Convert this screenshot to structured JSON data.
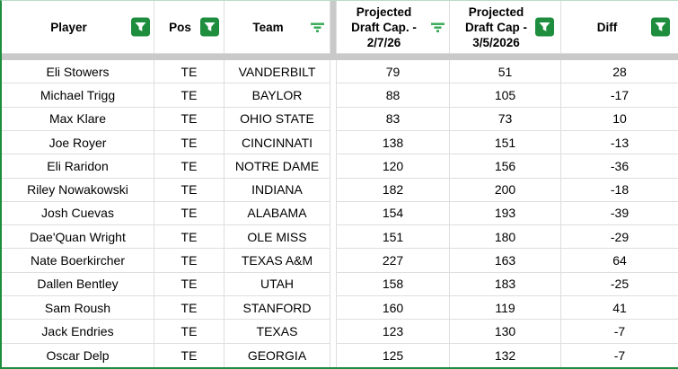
{
  "colors": {
    "accent_green_border": "#1e8e3e",
    "filter_badge_green": "#1e8e3e",
    "filter_lines_green": "#34a853",
    "gridline_gray": "#dedede",
    "frozen_divider_gray": "#c9c9c9",
    "cell_background": "#ffffff",
    "text": "#000000"
  },
  "icons": {
    "badge": "filter-applied-badge-icon",
    "lines": "filter-funnel-lines-icon"
  },
  "table": {
    "columns": [
      {
        "label": "Player",
        "filter_icon": "badge"
      },
      {
        "label": "Pos",
        "filter_icon": "badge"
      },
      {
        "label": "Team",
        "filter_icon": "lines"
      },
      {
        "label": "Projected Draft Cap. - 2/7/26",
        "filter_icon": "lines"
      },
      {
        "label": "Projected Draft Cap - 3/5/2026",
        "filter_icon": "badge"
      },
      {
        "label": "Diff",
        "filter_icon": "badge"
      }
    ],
    "rows": [
      {
        "player": "Eli Stowers",
        "pos": "TE",
        "team": "VANDERBILT",
        "cap_2_7_26": 79,
        "cap_3_5_2026": 51,
        "diff": 28
      },
      {
        "player": "Michael Trigg",
        "pos": "TE",
        "team": "BAYLOR",
        "cap_2_7_26": 88,
        "cap_3_5_2026": 105,
        "diff": -17
      },
      {
        "player": "Max Klare",
        "pos": "TE",
        "team": "OHIO STATE",
        "cap_2_7_26": 83,
        "cap_3_5_2026": 73,
        "diff": 10
      },
      {
        "player": "Joe Royer",
        "pos": "TE",
        "team": "CINCINNATI",
        "cap_2_7_26": 138,
        "cap_3_5_2026": 151,
        "diff": -13
      },
      {
        "player": "Eli Raridon",
        "pos": "TE",
        "team": "NOTRE DAME",
        "cap_2_7_26": 120,
        "cap_3_5_2026": 156,
        "diff": -36
      },
      {
        "player": "Riley Nowakowski",
        "pos": "TE",
        "team": "INDIANA",
        "cap_2_7_26": 182,
        "cap_3_5_2026": 200,
        "diff": -18
      },
      {
        "player": "Josh Cuevas",
        "pos": "TE",
        "team": "ALABAMA",
        "cap_2_7_26": 154,
        "cap_3_5_2026": 193,
        "diff": -39
      },
      {
        "player": "Dae'Quan Wright",
        "pos": "TE",
        "team": "OLE MISS",
        "cap_2_7_26": 151,
        "cap_3_5_2026": 180,
        "diff": -29
      },
      {
        "player": "Nate Boerkircher",
        "pos": "TE",
        "team": "TEXAS A&M",
        "cap_2_7_26": 227,
        "cap_3_5_2026": 163,
        "diff": 64
      },
      {
        "player": "Dallen Bentley",
        "pos": "TE",
        "team": "UTAH",
        "cap_2_7_26": 158,
        "cap_3_5_2026": 183,
        "diff": -25
      },
      {
        "player": "Sam Roush",
        "pos": "TE",
        "team": "STANFORD",
        "cap_2_7_26": 160,
        "cap_3_5_2026": 119,
        "diff": 41
      },
      {
        "player": "Jack Endries",
        "pos": "TE",
        "team": "TEXAS",
        "cap_2_7_26": 123,
        "cap_3_5_2026": 130,
        "diff": -7
      },
      {
        "player": "Oscar Delp",
        "pos": "TE",
        "team": "GEORGIA",
        "cap_2_7_26": 125,
        "cap_3_5_2026": 132,
        "diff": -7
      }
    ]
  }
}
